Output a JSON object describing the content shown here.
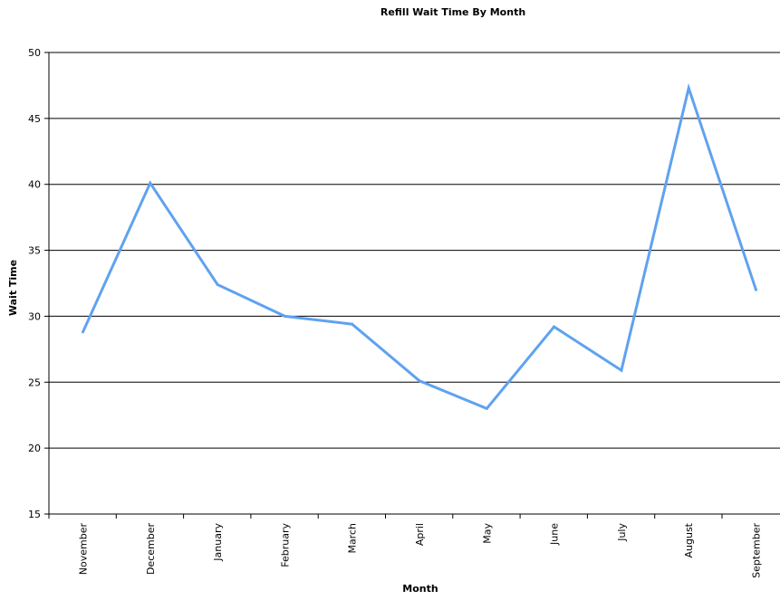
{
  "chart_data": {
    "type": "line",
    "title": "Refill Wait Time By Month",
    "xlabel": "Month",
    "ylabel": "Wait Time",
    "categories": [
      "November",
      "December",
      "January",
      "February",
      "March",
      "April",
      "May",
      "June",
      "July",
      "August",
      "September"
    ],
    "series": [
      {
        "values": [
          28.8,
          40.1,
          32.4,
          30.0,
          29.4,
          25.1,
          23.0,
          29.2,
          25.9,
          47.3,
          32.0
        ]
      }
    ],
    "ylim": [
      15,
      50
    ],
    "yticks": [
      15,
      20,
      25,
      30,
      35,
      40,
      45,
      50
    ],
    "grid": true,
    "legend": "none",
    "line_color": "#5fa2f0"
  }
}
